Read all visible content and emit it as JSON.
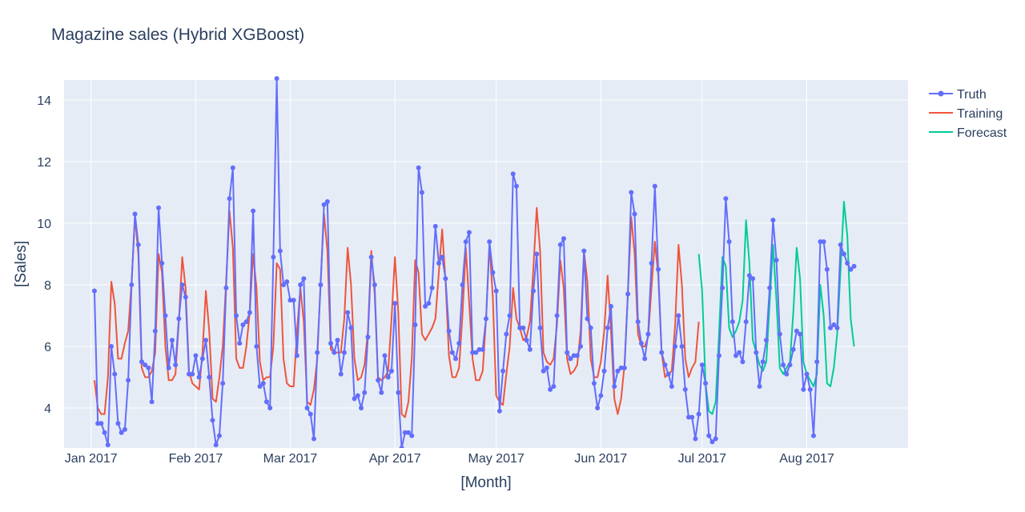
{
  "chart_data": {
    "type": "line",
    "title": "Magazine sales (Hybrid XGBoost)",
    "xlabel": "[Month]",
    "ylabel": "[Sales]",
    "x_start": "2017-01-02",
    "x_range": [
      "2016-12-24",
      "2017-08-31"
    ],
    "ylim": [
      2.7,
      14.65
    ],
    "y_ticks": [
      4,
      6,
      8,
      10,
      12,
      14
    ],
    "x_ticks": [
      {
        "date": "2017-01-01",
        "label": "Jan 2017"
      },
      {
        "date": "2017-02-01",
        "label": "Feb 2017"
      },
      {
        "date": "2017-03-01",
        "label": "Mar 2017"
      },
      {
        "date": "2017-04-01",
        "label": "Apr 2017"
      },
      {
        "date": "2017-05-01",
        "label": "May 2017"
      },
      {
        "date": "2017-06-01",
        "label": "Jun 2017"
      },
      {
        "date": "2017-07-01",
        "label": "Jul 2017"
      },
      {
        "date": "2017-08-01",
        "label": "Aug 2017"
      }
    ],
    "grid": true,
    "legend_position": "right",
    "series": [
      {
        "name": "Truth",
        "style": "lines+markers",
        "color": "#636efa",
        "start": "2017-01-02",
        "values": [
          7.8,
          3.5,
          3.5,
          3.2,
          2.8,
          6.0,
          5.1,
          3.5,
          3.2,
          3.3,
          4.9,
          8.0,
          10.3,
          9.3,
          5.5,
          5.4,
          5.3,
          4.2,
          6.5,
          10.5,
          8.7,
          7.0,
          5.3,
          6.2,
          5.4,
          6.9,
          8.0,
          7.6,
          5.1,
          5.1,
          5.7,
          5.0,
          5.6,
          6.2,
          5.0,
          3.6,
          2.8,
          3.1,
          4.8,
          7.9,
          10.8,
          11.8,
          7.0,
          6.1,
          6.7,
          6.8,
          7.1,
          10.4,
          6.0,
          4.7,
          4.8,
          4.2,
          4.0,
          8.9,
          14.7,
          9.1,
          8.0,
          8.1,
          7.5,
          7.5,
          5.7,
          8.0,
          8.2,
          4.0,
          3.8,
          3.0,
          5.8,
          8.0,
          10.6,
          10.7,
          6.1,
          5.8,
          6.2,
          5.1,
          5.8,
          7.1,
          6.6,
          4.3,
          4.4,
          4.0,
          4.5,
          6.3,
          8.9,
          8.0,
          4.9,
          4.5,
          5.7,
          5.0,
          5.2,
          7.4,
          4.5,
          2.7,
          3.2,
          3.2,
          3.1,
          6.7,
          11.8,
          11.0,
          7.3,
          7.4,
          7.9,
          9.9,
          8.7,
          8.9,
          8.2,
          6.5,
          5.8,
          5.6,
          6.1,
          8.0,
          9.4,
          9.7,
          5.8,
          5.8,
          5.9,
          5.9,
          6.9,
          9.4,
          8.4,
          7.8,
          3.9,
          5.2,
          6.4,
          7.0,
          11.6,
          11.2,
          6.6,
          6.6,
          6.2,
          5.9,
          7.8,
          9.0,
          6.6,
          5.2,
          5.3,
          4.6,
          4.7,
          7.0,
          9.3,
          9.5,
          5.8,
          5.6,
          5.7,
          5.7,
          6.0,
          9.1,
          6.9,
          6.6,
          4.8,
          4.0,
          4.4,
          5.2,
          6.6,
          7.3,
          4.7,
          5.2,
          5.3,
          5.3,
          7.7,
          11.0,
          10.3,
          6.8,
          6.1,
          5.6,
          6.4,
          8.7,
          11.2,
          8.5,
          5.8,
          5.4,
          5.1,
          4.7,
          6.0,
          7.0,
          6.0,
          4.6,
          3.7,
          3.7,
          3.0,
          3.8,
          5.4,
          4.8,
          3.1,
          2.9,
          3.0,
          5.7,
          7.9,
          10.8,
          9.4,
          6.8,
          5.7,
          5.8,
          5.5,
          6.8,
          8.3,
          8.2,
          5.8,
          4.7,
          5.5,
          6.2,
          7.9,
          10.1,
          8.8,
          6.4,
          5.4,
          5.1,
          5.4,
          5.9,
          6.5,
          6.4,
          4.6,
          5.1,
          4.6,
          3.1,
          5.5,
          9.4,
          9.4,
          8.5,
          6.6,
          6.7,
          6.6,
          9.3,
          9.0,
          8.7,
          8.5,
          8.6
        ]
      },
      {
        "name": "Training",
        "style": "lines",
        "color": "#ef553b",
        "start": "2017-01-02",
        "values": [
          4.9,
          4.0,
          3.8,
          3.8,
          5.0,
          8.1,
          7.4,
          5.6,
          5.6,
          6.1,
          6.5,
          8.1,
          10.2,
          9.0,
          5.3,
          5.0,
          5.0,
          5.2,
          5.8,
          9.0,
          8.4,
          6.0,
          4.9,
          4.9,
          5.1,
          6.8,
          8.9,
          7.9,
          5.2,
          4.8,
          4.7,
          4.6,
          5.8,
          7.8,
          6.5,
          4.3,
          4.2,
          5.0,
          6.0,
          8.1,
          10.4,
          9.2,
          5.6,
          5.3,
          5.3,
          6.0,
          7.1,
          9.0,
          7.9,
          5.5,
          4.9,
          5.0,
          5.0,
          6.0,
          8.7,
          8.5,
          5.6,
          4.8,
          4.7,
          4.7,
          6.5,
          7.9,
          6.8,
          4.2,
          4.1,
          4.6,
          5.6,
          8.1,
          10.3,
          9.1,
          5.9,
          5.8,
          5.8,
          5.8,
          6.9,
          9.2,
          8.0,
          5.6,
          4.9,
          5.0,
          5.4,
          6.5,
          9.1,
          7.7,
          5.0,
          4.9,
          5.0,
          5.2,
          6.9,
          8.9,
          7.1,
          3.8,
          3.7,
          4.2,
          5.6,
          8.8,
          8.4,
          6.4,
          6.2,
          6.4,
          6.6,
          6.9,
          8.4,
          9.8,
          8.1,
          5.7,
          5.0,
          5.0,
          5.3,
          7.0,
          9.2,
          7.4,
          5.6,
          4.9,
          4.9,
          5.2,
          6.9,
          9.3,
          7.6,
          4.4,
          4.2,
          4.1,
          5.1,
          6.0,
          7.9,
          6.9,
          6.6,
          6.2,
          6.3,
          6.8,
          8.5,
          10.5,
          9.1,
          5.8,
          5.5,
          5.4,
          5.6,
          6.7,
          8.8,
          7.9,
          5.6,
          5.1,
          5.2,
          5.4,
          6.5,
          9.1,
          8.1,
          5.6,
          5.0,
          5.0,
          5.5,
          6.5,
          8.3,
          6.5,
          4.3,
          3.8,
          4.3,
          5.4,
          7.7,
          10.2,
          9.0,
          6.4,
          6.0,
          6.0,
          6.3,
          7.9,
          9.4,
          8.3,
          5.8,
          5.0,
          5.1,
          5.2,
          6.7,
          9.3,
          8.0,
          5.6,
          5.0,
          5.3,
          5.5,
          6.8
        ]
      },
      {
        "name": "Forecast",
        "style": "lines",
        "color": "#00cc96",
        "start": "2017-06-30",
        "values": [
          9.0,
          7.8,
          4.8,
          3.9,
          3.8,
          4.2,
          6.4,
          8.9,
          8.6,
          6.6,
          6.3,
          6.5,
          6.8,
          7.5,
          10.1,
          8.7,
          6.2,
          5.8,
          5.4,
          5.2,
          5.5,
          7.4,
          9.3,
          7.5,
          5.3,
          5.1,
          5.3,
          5.5,
          7.1,
          9.2,
          8.2,
          5.5,
          5.1,
          4.9,
          4.7,
          5.1,
          8.0,
          7.0,
          4.8,
          4.7,
          5.3,
          6.4,
          8.5,
          10.7,
          9.6,
          6.9,
          6.0
        ]
      }
    ]
  }
}
